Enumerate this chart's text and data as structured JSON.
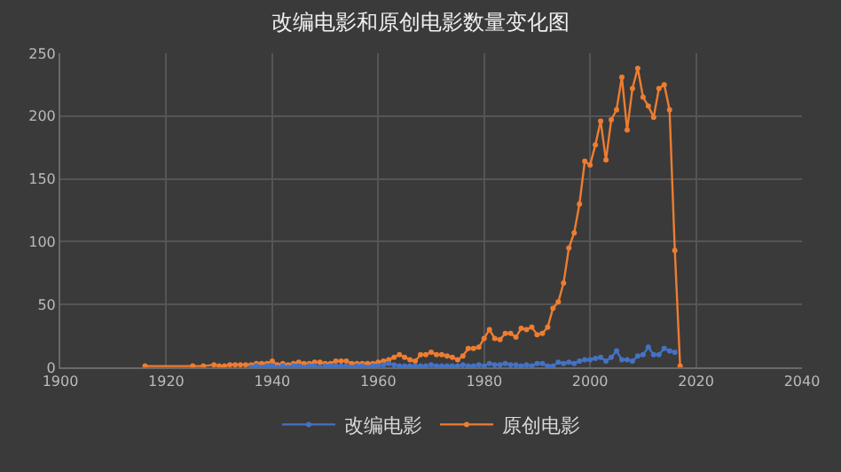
{
  "chart_data": {
    "type": "line",
    "title": "改编电影和原创电影数量变化图",
    "xlim": [
      1900,
      2040
    ],
    "xticks": [
      1900,
      1920,
      1940,
      1960,
      1980,
      2000,
      2020,
      2040
    ],
    "ylim": [
      0,
      250
    ],
    "yticks": [
      0,
      50,
      100,
      150,
      200,
      250
    ],
    "grid": true,
    "legend": "bottom",
    "marker": "circle",
    "line_style": "solid",
    "series": [
      {
        "name": "改编电影",
        "color": "#4472c4",
        "x": [
          1936,
          1937,
          1938,
          1939,
          1940,
          1941,
          1942,
          1943,
          1944,
          1945,
          1946,
          1947,
          1948,
          1949,
          1950,
          1951,
          1952,
          1953,
          1954,
          1955,
          1956,
          1957,
          1958,
          1959,
          1960,
          1961,
          1962,
          1963,
          1964,
          1965,
          1966,
          1967,
          1968,
          1969,
          1970,
          1971,
          1972,
          1973,
          1974,
          1975,
          1976,
          1977,
          1978,
          1979,
          1980,
          1981,
          1982,
          1983,
          1984,
          1985,
          1986,
          1987,
          1988,
          1989,
          1990,
          1991,
          1992,
          1993,
          1994,
          1995,
          1996,
          1997,
          1998,
          1999,
          2000,
          2001,
          2002,
          2003,
          2004,
          2005,
          2006,
          2007,
          2008,
          2009,
          2010,
          2011,
          2012,
          2013,
          2014,
          2015,
          2016
        ],
        "values": [
          0,
          1,
          0,
          1,
          1,
          0,
          1,
          0,
          1,
          1,
          0,
          1,
          1,
          0,
          1,
          1,
          1,
          1,
          1,
          0,
          1,
          1,
          0,
          1,
          1,
          2,
          3,
          2,
          1,
          1,
          1,
          1,
          1,
          1,
          2,
          1,
          1,
          1,
          1,
          1,
          2,
          1,
          1,
          2,
          1,
          3,
          2,
          2,
          3,
          2,
          2,
          1,
          2,
          1,
          3,
          3,
          1,
          1,
          4,
          3,
          4,
          3,
          5,
          6,
          6,
          7,
          8,
          5,
          8,
          13,
          6,
          6,
          5,
          9,
          10,
          16,
          10,
          10,
          15,
          13,
          12
        ]
      },
      {
        "name": "原创电影",
        "color": "#ed7d31",
        "x": [
          1916,
          1925,
          1927,
          1929,
          1930,
          1931,
          1932,
          1933,
          1934,
          1935,
          1936,
          1937,
          1938,
          1939,
          1940,
          1941,
          1942,
          1943,
          1944,
          1945,
          1946,
          1947,
          1948,
          1949,
          1950,
          1951,
          1952,
          1953,
          1954,
          1955,
          1956,
          1957,
          1958,
          1959,
          1960,
          1961,
          1962,
          1963,
          1964,
          1965,
          1966,
          1967,
          1968,
          1969,
          1970,
          1971,
          1972,
          1973,
          1974,
          1975,
          1976,
          1977,
          1978,
          1979,
          1980,
          1981,
          1982,
          1983,
          1984,
          1985,
          1986,
          1987,
          1988,
          1989,
          1990,
          1991,
          1992,
          1993,
          1994,
          1995,
          1996,
          1997,
          1998,
          1999,
          2000,
          2001,
          2002,
          2003,
          2004,
          2005,
          2006,
          2007,
          2008,
          2009,
          2010,
          2011,
          2012,
          2013,
          2014,
          2015,
          2016,
          2017
        ],
        "values": [
          1,
          1,
          1,
          2,
          1,
          1,
          2,
          2,
          2,
          2,
          2,
          3,
          3,
          3,
          5,
          2,
          3,
          2,
          3,
          4,
          3,
          3,
          4,
          4,
          3,
          3,
          5,
          5,
          5,
          3,
          3,
          3,
          3,
          3,
          4,
          5,
          6,
          8,
          10,
          8,
          6,
          5,
          10,
          10,
          12,
          10,
          10,
          9,
          8,
          6,
          9,
          15,
          15,
          16,
          23,
          30,
          23,
          22,
          27,
          27,
          24,
          31,
          30,
          32,
          26,
          27,
          32,
          47,
          52,
          67,
          95,
          107,
          130,
          164,
          161,
          177,
          196,
          165,
          197,
          205,
          231,
          189,
          222,
          238,
          215,
          208,
          199,
          222,
          225,
          205,
          93,
          1
        ]
      }
    ]
  }
}
